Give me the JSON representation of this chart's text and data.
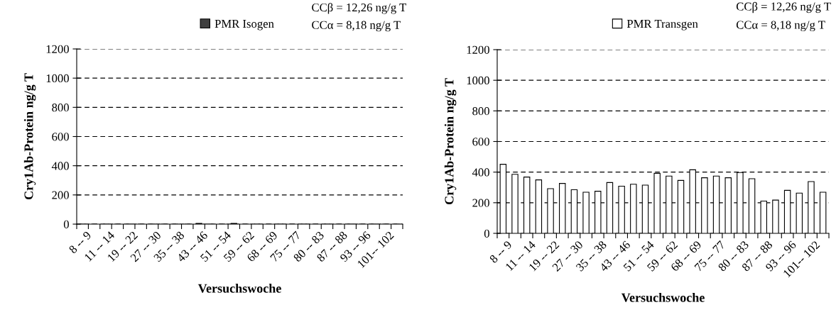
{
  "chart_data": [
    {
      "type": "bar",
      "xlabel": "Versuchswoche",
      "ylabel": "Cry1Ab-Protein ng/g T",
      "categories": [
        "8 -- 9",
        null,
        "11 -- 14",
        null,
        "19 -- 22",
        null,
        "27 -- 30",
        null,
        "35 -- 38",
        null,
        "43 -- 46",
        null,
        "51 -- 54",
        null,
        "59 -- 62",
        null,
        "68 -- 69",
        null,
        "75 -- 77",
        null,
        "80 -- 83",
        null,
        "87 -- 88",
        null,
        "93 -- 96",
        null,
        "101-- 102",
        null
      ],
      "series": [
        {
          "name": "PMR Isogen",
          "color": "#404040",
          "values": [
            0,
            0,
            0,
            0,
            0,
            0,
            0,
            0,
            0,
            0,
            5,
            0,
            0,
            5,
            0,
            0,
            0,
            0,
            0,
            0,
            0,
            0,
            0,
            0,
            0,
            0,
            0,
            0
          ]
        }
      ],
      "ylim": [
        0,
        1200
      ],
      "yticks": [
        0,
        200,
        400,
        600,
        800,
        1000,
        1200
      ],
      "grid": "y",
      "legend": "top",
      "annotations": [
        "CCβ = 12,26 ng/g T",
        "CCα = 8,18 ng/g T"
      ]
    },
    {
      "type": "bar",
      "xlabel": "Versuchswoche",
      "ylabel": "Cry1Ab-Protein ng/g T",
      "categories": [
        "8 -- 9",
        null,
        "11 -- 14",
        null,
        "19 -- 22",
        null,
        "27 -- 30",
        null,
        "35 -- 38",
        null,
        "43 -- 46",
        null,
        "51 -- 54",
        null,
        "59 -- 62",
        null,
        "68 -- 69",
        null,
        "75 -- 77",
        null,
        "80 -- 83",
        null,
        "87 -- 88",
        null,
        "93 -- 96",
        null,
        "101-- 102",
        null
      ],
      "series": [
        {
          "name": "PMR Transgen",
          "color": "#ffffff",
          "values": [
            451,
            386,
            368,
            349,
            292,
            326,
            285,
            269,
            275,
            332,
            308,
            321,
            315,
            392,
            374,
            346,
            415,
            363,
            374,
            363,
            397,
            357,
            211,
            217,
            281,
            263,
            338,
            269
          ]
        }
      ],
      "ylim": [
        0,
        1200
      ],
      "yticks": [
        0,
        200,
        400,
        600,
        800,
        1000,
        1200
      ],
      "grid": "y",
      "legend": "top",
      "annotations": [
        "CCβ = 12,26 ng/g T",
        "CCα = 8,18 ng/g T"
      ]
    }
  ]
}
